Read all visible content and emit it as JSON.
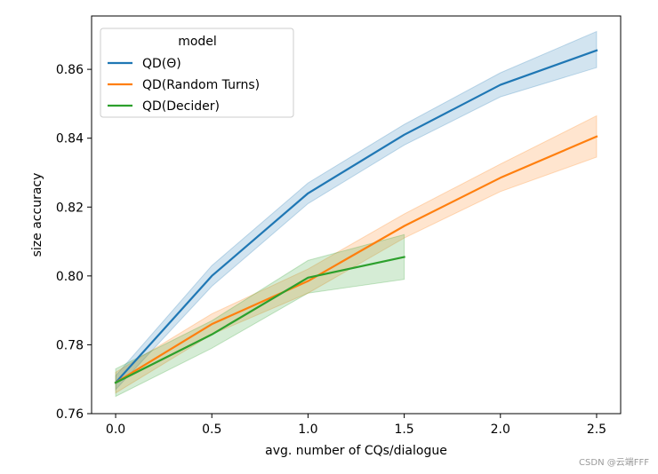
{
  "chart_data": {
    "type": "line",
    "xlabel": "avg. number of CQs/dialogue",
    "ylabel": "size accuracy",
    "xlim": [
      -0.125,
      2.625
    ],
    "ylim": [
      0.76,
      0.8755
    ],
    "xticks": [
      "0.0",
      "0.5",
      "1.0",
      "1.5",
      "2.0",
      "2.5"
    ],
    "yticks": [
      "0.76",
      "0.78",
      "0.80",
      "0.82",
      "0.84",
      "0.86"
    ],
    "grid": false,
    "legend": {
      "title": "model",
      "placement": "top-left"
    },
    "series": [
      {
        "name": "QD(Θ)",
        "color": "#1f77b4",
        "x": [
          0.0,
          0.5,
          1.0,
          1.5,
          2.0,
          2.5
        ],
        "y": [
          0.769,
          0.8,
          0.824,
          0.841,
          0.8555,
          0.8655
        ],
        "lower": [
          0.767,
          0.797,
          0.821,
          0.838,
          0.852,
          0.8605
        ],
        "upper": [
          0.771,
          0.803,
          0.827,
          0.844,
          0.859,
          0.871
        ]
      },
      {
        "name": "QD(Random Turns)",
        "color": "#ff7f0e",
        "x": [
          0.0,
          0.5,
          1.0,
          1.5,
          2.0,
          2.5
        ],
        "y": [
          0.769,
          0.786,
          0.7985,
          0.8145,
          0.8285,
          0.8405
        ],
        "lower": [
          0.766,
          0.783,
          0.795,
          0.811,
          0.8245,
          0.8345
        ],
        "upper": [
          0.772,
          0.789,
          0.802,
          0.818,
          0.8325,
          0.8465
        ]
      },
      {
        "name": "QD(Decider)",
        "color": "#2ca02c",
        "x": [
          0.0,
          0.5,
          1.0,
          1.5
        ],
        "y": [
          0.769,
          0.783,
          0.7995,
          0.8055
        ],
        "lower": [
          0.765,
          0.779,
          0.795,
          0.799
        ],
        "upper": [
          0.773,
          0.787,
          0.8045,
          0.812
        ]
      }
    ]
  },
  "watermark": "CSDN @云端FFF"
}
